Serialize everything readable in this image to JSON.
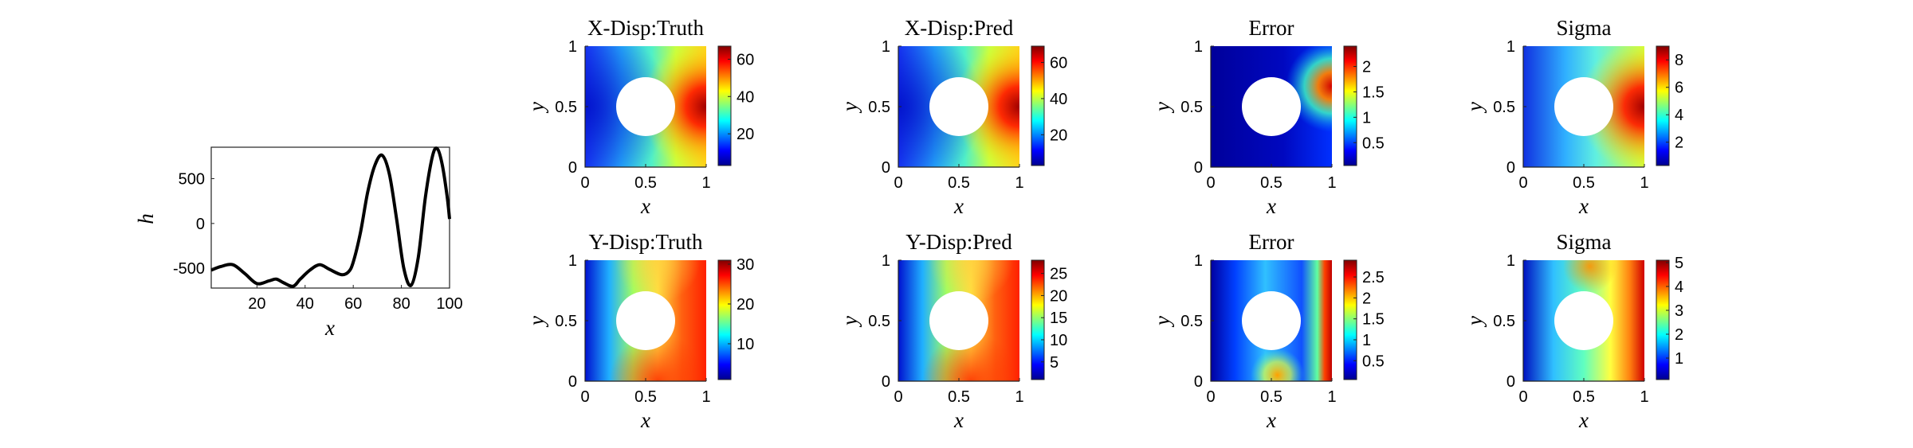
{
  "chart_data": [
    {
      "type": "line",
      "xlabel": "x",
      "ylabel": "h",
      "xlim": [
        1,
        100
      ],
      "ylim": [
        -720,
        850
      ],
      "xticks": [
        "20",
        "40",
        "60",
        "80",
        "100"
      ],
      "yticks": [
        "-500",
        "0",
        "500"
      ],
      "series": [
        {
          "x": [
            1,
            5,
            10,
            15,
            20,
            25,
            28,
            31,
            35,
            38,
            42,
            46,
            50,
            55,
            58,
            60,
            63,
            66,
            69,
            72,
            75,
            78,
            81,
            84,
            87,
            90,
            93,
            95,
            97,
            99,
            100
          ],
          "values": [
            -520,
            -480,
            -460,
            -560,
            -670,
            -640,
            -620,
            -660,
            -700,
            -620,
            -520,
            -460,
            -510,
            -570,
            -540,
            -430,
            -100,
            350,
            650,
            760,
            550,
            50,
            -500,
            -690,
            -380,
            300,
            760,
            830,
            650,
            300,
            50
          ]
        }
      ]
    },
    {
      "type": "heatmap",
      "title": "X-Disp:Truth",
      "xlabel": "x",
      "ylabel": "y",
      "xticks": [
        "0",
        "0.5",
        "1"
      ],
      "yticks": [
        "0",
        "0.5",
        "1"
      ],
      "colorbar_range": [
        3,
        67
      ],
      "colorbar_ticks": [
        "20",
        "40",
        "60"
      ]
    },
    {
      "type": "heatmap",
      "title": "X-Disp:Pred",
      "xlabel": "x",
      "ylabel": "y",
      "xticks": [
        "0",
        "0.5",
        "1"
      ],
      "yticks": [
        "0",
        "0.5",
        "1"
      ],
      "colorbar_range": [
        3,
        69
      ],
      "colorbar_ticks": [
        "20",
        "40",
        "60"
      ]
    },
    {
      "type": "heatmap",
      "title": "Error",
      "xlabel": "x",
      "ylabel": "y",
      "xticks": [
        "0",
        "0.5",
        "1"
      ],
      "yticks": [
        "0",
        "0.5",
        "1"
      ],
      "colorbar_range": [
        0.05,
        2.4
      ],
      "colorbar_ticks": [
        "0.5",
        "1",
        "1.5",
        "2"
      ]
    },
    {
      "type": "heatmap",
      "title": "Sigma",
      "xlabel": "x",
      "ylabel": "y",
      "xticks": [
        "0",
        "0.5",
        "1"
      ],
      "yticks": [
        "0",
        "0.5",
        "1"
      ],
      "colorbar_range": [
        0.3,
        9
      ],
      "colorbar_ticks": [
        "2",
        "4",
        "6",
        "8"
      ]
    },
    {
      "type": "heatmap",
      "title": "Y-Disp:Truth",
      "xlabel": "x",
      "ylabel": "y",
      "xticks": [
        "0",
        "0.5",
        "1"
      ],
      "yticks": [
        "0",
        "0.5",
        "1"
      ],
      "colorbar_range": [
        1,
        31
      ],
      "colorbar_ticks": [
        "10",
        "20",
        "30"
      ]
    },
    {
      "type": "heatmap",
      "title": "Y-Disp:Pred",
      "xlabel": "x",
      "ylabel": "y",
      "xticks": [
        "0",
        "0.5",
        "1"
      ],
      "yticks": [
        "0",
        "0.5",
        "1"
      ],
      "colorbar_range": [
        1,
        28
      ],
      "colorbar_ticks": [
        "5",
        "10",
        "15",
        "20",
        "25"
      ]
    },
    {
      "type": "heatmap",
      "title": "Error",
      "xlabel": "x",
      "ylabel": "y",
      "xticks": [
        "0",
        "0.5",
        "1"
      ],
      "yticks": [
        "0",
        "0.5",
        "1"
      ],
      "colorbar_range": [
        0.05,
        2.9
      ],
      "colorbar_ticks": [
        "0.5",
        "1",
        "1.5",
        "2",
        "2.5"
      ]
    },
    {
      "type": "heatmap",
      "title": "Sigma",
      "xlabel": "x",
      "ylabel": "y",
      "xticks": [
        "0",
        "0.5",
        "1"
      ],
      "yticks": [
        "0",
        "0.5",
        "1"
      ],
      "colorbar_range": [
        0.1,
        5.1
      ],
      "colorbar_ticks": [
        "1",
        "2",
        "3",
        "4",
        "5"
      ]
    }
  ]
}
